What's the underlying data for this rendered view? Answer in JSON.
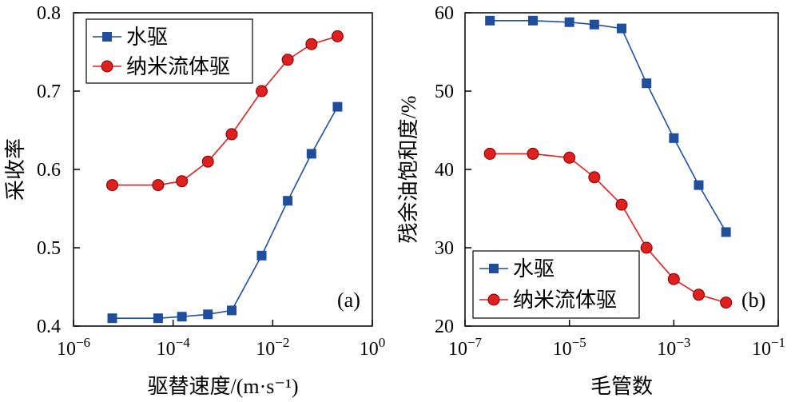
{
  "chart_data": [
    {
      "panel": "(a)",
      "type": "line",
      "xlabel": "驱替速度/(m·s⁻¹)",
      "ylabel": "采收率",
      "x_scale": "log",
      "xlim": [
        1e-06,
        1
      ],
      "ylim": [
        0.4,
        0.8
      ],
      "x_ticks": [
        {
          "value": 1e-06,
          "base": "10",
          "exp": "−6"
        },
        {
          "value": 0.0001,
          "base": "10",
          "exp": "−4"
        },
        {
          "value": 0.01,
          "base": "10",
          "exp": "−2"
        },
        {
          "value": 1,
          "base": "10",
          "exp": "0"
        }
      ],
      "y_ticks": [
        "0.4",
        "0.5",
        "0.6",
        "0.7",
        "0.8"
      ],
      "legend_position": "top-left",
      "series": [
        {
          "name": "水驱",
          "color": "#1f4e9c",
          "marker": "square",
          "x": [
            6e-06,
            5e-05,
            0.00015,
            0.0005,
            0.0015,
            0.006,
            0.02,
            0.06,
            0.2
          ],
          "y": [
            0.41,
            0.41,
            0.412,
            0.415,
            0.42,
            0.49,
            0.56,
            0.62,
            0.68
          ]
        },
        {
          "name": "纳米流体驱",
          "color": "#e01f1f",
          "marker": "circle",
          "x": [
            6e-06,
            5e-05,
            0.00015,
            0.0005,
            0.0015,
            0.006,
            0.02,
            0.06,
            0.2
          ],
          "y": [
            0.58,
            0.58,
            0.585,
            0.61,
            0.645,
            0.7,
            0.74,
            0.76,
            0.77
          ]
        }
      ]
    },
    {
      "panel": "(b)",
      "type": "line",
      "xlabel": "毛管数",
      "ylabel": "残余油饱和度/%",
      "x_scale": "log",
      "xlim": [
        1e-07,
        0.1
      ],
      "ylim": [
        20,
        60
      ],
      "x_ticks": [
        {
          "value": 1e-07,
          "base": "10",
          "exp": "−7"
        },
        {
          "value": 1e-05,
          "base": "10",
          "exp": "−5"
        },
        {
          "value": 0.001,
          "base": "10",
          "exp": "−3"
        },
        {
          "value": 0.1,
          "base": "10",
          "exp": "−1"
        }
      ],
      "y_ticks": [
        "20",
        "30",
        "40",
        "50",
        "60"
      ],
      "legend_position": "bottom-left",
      "series": [
        {
          "name": "水驱",
          "color": "#1f4e9c",
          "marker": "square",
          "x": [
            3e-07,
            2e-06,
            1e-05,
            3e-05,
            0.0001,
            0.0003,
            0.001,
            0.003,
            0.01
          ],
          "y": [
            59,
            59,
            58.8,
            58.5,
            58,
            51,
            44,
            38,
            32
          ]
        },
        {
          "name": "纳米流体驱",
          "color": "#e01f1f",
          "marker": "circle",
          "x": [
            3e-07,
            2e-06,
            1e-05,
            3e-05,
            0.0001,
            0.0003,
            0.001,
            0.003,
            0.01
          ],
          "y": [
            42,
            42,
            41.5,
            39,
            35.5,
            30,
            26,
            24,
            23
          ]
        }
      ]
    }
  ]
}
